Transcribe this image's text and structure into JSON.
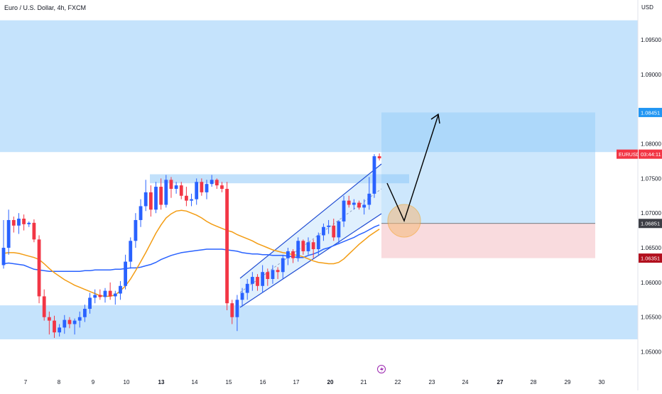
{
  "chart_data": {
    "type": "candlestick",
    "title": "Euro / U.S. Dollar, 4h, FXCM",
    "currency": "USD",
    "ylim": [
      1.0475,
      1.0995
    ],
    "y_ticks": [
      "1.09500",
      "1.09000",
      "1.08000",
      "1.07500",
      "1.07000",
      "1.06500",
      "1.06000",
      "1.05500",
      "1.05000"
    ],
    "y_tick_values": [
      1.095,
      1.09,
      1.08,
      1.075,
      1.07,
      1.065,
      1.06,
      1.055,
      1.05
    ],
    "x_ticks": [
      "7",
      "8",
      "9",
      "10",
      "13",
      "14",
      "15",
      "16",
      "17",
      "20",
      "21",
      "22",
      "23",
      "24",
      "27",
      "28",
      "29",
      "30"
    ],
    "x_tick_bold": [
      "13",
      "20",
      "27"
    ],
    "price_labels": [
      {
        "text": "1.08451",
        "value": 1.08451,
        "color": "#2196f3",
        "text_color": "#ffffff"
      },
      {
        "symbol": "EURUSD",
        "text": "03:44:11",
        "value": 1.0785,
        "color": "#f23645",
        "text_color": "#ffffff"
      },
      {
        "text": "1.06851",
        "value": 1.06851,
        "color": "#3d3f46",
        "text_color": "#ffffff"
      },
      {
        "text": "1.06351",
        "value": 1.06351,
        "color": "#b2101e",
        "text_color": "#ffffff"
      }
    ],
    "zones": [
      {
        "name": "upper-supply-zone",
        "y_from": 1.0788,
        "y_to": 1.0978
      },
      {
        "name": "lower-demand-zone",
        "y_from": 1.0518,
        "y_to": 1.0567
      },
      {
        "name": "resistance-line-zone",
        "y_from": 1.0743,
        "y_to": 1.0756
      }
    ],
    "position": {
      "entry": 1.06851,
      "target": 1.08451,
      "stop": 1.06351
    },
    "candles": [
      [
        1.0625,
        1.069,
        1.062,
        1.065
      ],
      [
        1.065,
        1.0705,
        1.064,
        1.069
      ],
      [
        1.069,
        1.0695,
        1.0672,
        1.0682
      ],
      [
        1.0682,
        1.07,
        1.067,
        1.0692
      ],
      [
        1.0692,
        1.0698,
        1.0675,
        1.0684
      ],
      [
        1.0684,
        1.0688,
        1.068,
        1.0686
      ],
      [
        1.0686,
        1.0691,
        1.0658,
        1.0662
      ],
      [
        1.0662,
        1.0668,
        1.057,
        1.058
      ],
      [
        1.058,
        1.059,
        1.0545,
        1.055
      ],
      [
        1.055,
        1.0558,
        1.0525,
        1.0545
      ],
      [
        1.0545,
        1.0552,
        1.052,
        1.0528
      ],
      [
        1.0528,
        1.054,
        1.0522,
        1.0535
      ],
      [
        1.0535,
        1.0553,
        1.0526,
        1.0546
      ],
      [
        1.0546,
        1.055,
        1.0534,
        1.054
      ],
      [
        1.054,
        1.0548,
        1.0525,
        1.0545
      ],
      [
        1.0545,
        1.0558,
        1.0535,
        1.055
      ],
      [
        1.055,
        1.0568,
        1.0543,
        1.0562
      ],
      [
        1.0562,
        1.0585,
        1.0555,
        1.0578
      ],
      [
        1.0578,
        1.059,
        1.057,
        1.0582
      ],
      [
        1.0582,
        1.059,
        1.0575,
        1.0579
      ],
      [
        1.0579,
        1.0592,
        1.0571,
        1.0588
      ],
      [
        1.0588,
        1.06,
        1.0575,
        1.058
      ],
      [
        1.058,
        1.0588,
        1.0568,
        1.0584
      ],
      [
        1.0584,
        1.0602,
        1.0575,
        1.0595
      ],
      [
        1.0595,
        1.064,
        1.059,
        1.063
      ],
      [
        1.063,
        1.0665,
        1.062,
        1.066
      ],
      [
        1.066,
        1.07,
        1.065,
        1.069
      ],
      [
        1.069,
        1.072,
        1.068,
        1.071
      ],
      [
        1.071,
        1.0748,
        1.0703,
        1.073
      ],
      [
        1.073,
        1.074,
        1.0695,
        1.0705
      ],
      [
        1.0705,
        1.0745,
        1.07,
        1.0738
      ],
      [
        1.0738,
        1.075,
        1.0705,
        1.0712
      ],
      [
        1.0712,
        1.0755,
        1.0708,
        1.0748
      ],
      [
        1.0748,
        1.0752,
        1.0722,
        1.0735
      ],
      [
        1.0735,
        1.0745,
        1.0728,
        1.074
      ],
      [
        1.074,
        1.0745,
        1.072,
        1.0725
      ],
      [
        1.0725,
        1.0738,
        1.071,
        1.0718
      ],
      [
        1.0718,
        1.0728,
        1.071,
        1.072
      ],
      [
        1.072,
        1.075,
        1.0712,
        1.0745
      ],
      [
        1.0745,
        1.075,
        1.0725,
        1.073
      ],
      [
        1.073,
        1.0748,
        1.072,
        1.0742
      ],
      [
        1.0742,
        1.0755,
        1.0738,
        1.0748
      ],
      [
        1.0748,
        1.075,
        1.0735,
        1.074
      ],
      [
        1.074,
        1.0745,
        1.073,
        1.0735
      ],
      [
        1.0735,
        1.0745,
        1.056,
        1.057
      ],
      [
        1.057,
        1.0575,
        1.054,
        1.055
      ],
      [
        1.055,
        1.0582,
        1.053,
        1.0575
      ],
      [
        1.0575,
        1.0592,
        1.0565,
        1.0585
      ],
      [
        1.0585,
        1.0605,
        1.0575,
        1.0598
      ],
      [
        1.0598,
        1.0615,
        1.0588,
        1.0608
      ],
      [
        1.0608,
        1.0612,
        1.0588,
        1.0595
      ],
      [
        1.0595,
        1.0625,
        1.0585,
        1.0615
      ],
      [
        1.0615,
        1.062,
        1.0595,
        1.0605
      ],
      [
        1.0605,
        1.0625,
        1.0598,
        1.0618
      ],
      [
        1.0618,
        1.0622,
        1.0605,
        1.0615
      ],
      [
        1.0615,
        1.064,
        1.0605,
        1.0635
      ],
      [
        1.0635,
        1.065,
        1.0625,
        1.0645
      ],
      [
        1.0645,
        1.0648,
        1.0628,
        1.0635
      ],
      [
        1.0635,
        1.0665,
        1.063,
        1.066
      ],
      [
        1.066,
        1.0662,
        1.064,
        1.0645
      ],
      [
        1.0645,
        1.0665,
        1.064,
        1.0658
      ],
      [
        1.0658,
        1.0662,
        1.0635,
        1.0648
      ],
      [
        1.0648,
        1.0672,
        1.064,
        1.0668
      ],
      [
        1.0668,
        1.0685,
        1.066,
        1.068
      ],
      [
        1.068,
        1.069,
        1.067,
        1.0682
      ],
      [
        1.0682,
        1.0692,
        1.066,
        1.0665
      ],
      [
        1.0665,
        1.069,
        1.0655,
        1.0688
      ],
      [
        1.0688,
        1.0725,
        1.068,
        1.0718
      ],
      [
        1.0718,
        1.0725,
        1.0708,
        1.0712
      ],
      [
        1.0712,
        1.072,
        1.0705,
        1.0715
      ],
      [
        1.0715,
        1.0718,
        1.0705,
        1.0708
      ],
      [
        1.0708,
        1.072,
        1.0698,
        1.0712
      ],
      [
        1.0712,
        1.0752,
        1.0705,
        1.0728
      ],
      [
        1.0728,
        1.0785,
        1.0722,
        1.0782
      ],
      [
        1.0782,
        1.0786,
        1.0776,
        1.0779
      ]
    ],
    "ma_slow": [
      1.0627,
      1.0628,
      1.0627,
      1.0626,
      1.0625,
      1.0622,
      1.0619,
      1.0618,
      1.0617,
      1.0616,
      1.0616,
      1.0616,
      1.0616,
      1.0616,
      1.0616,
      1.0616,
      1.0617,
      1.0617,
      1.0618,
      1.0618,
      1.0618,
      1.0618,
      1.0619,
      1.0619,
      1.062,
      1.0621,
      1.0621,
      1.0622,
      1.0624,
      1.0626,
      1.0629,
      1.0633,
      1.0636,
      1.0639,
      1.0641,
      1.0643,
      1.0644,
      1.0645,
      1.0646,
      1.0647,
      1.0648,
      1.0648,
      1.0648,
      1.0648,
      1.0647,
      1.0646,
      1.0645,
      1.0643,
      1.0642,
      1.0641,
      1.0641,
      1.064,
      1.064,
      1.0639,
      1.0639,
      1.0639,
      1.0638,
      1.0637,
      1.0636,
      1.0636,
      1.0639,
      1.0641,
      1.0644,
      1.0648,
      1.065,
      1.0653,
      1.0656,
      1.0659,
      1.0662,
      1.0665,
      1.0669,
      1.0672,
      1.0676,
      1.068,
      1.0683
    ],
    "ma_fast": [
      1.0642,
      1.0643,
      1.0643,
      1.0642,
      1.064,
      1.0638,
      1.0636,
      1.0633,
      1.0627,
      1.062,
      1.0614,
      1.0609,
      1.0604,
      1.06,
      1.0596,
      1.0593,
      1.059,
      1.0587,
      1.0584,
      1.0581,
      1.058,
      1.058,
      1.0582,
      1.0588,
      1.0595,
      1.0605,
      1.0617,
      1.063,
      1.0643,
      1.0657,
      1.0671,
      1.0683,
      1.0693,
      1.0699,
      1.0703,
      1.0704,
      1.0703,
      1.07,
      1.0697,
      1.0693,
      1.0688,
      1.0684,
      1.0681,
      1.0678,
      1.0675,
      1.0673,
      1.0669,
      1.0666,
      1.0663,
      1.066,
      1.0656,
      1.0653,
      1.065,
      1.0647,
      1.0645,
      1.0643,
      1.0642,
      1.064,
      1.0639,
      1.0637,
      1.0634,
      1.0631,
      1.0629,
      1.0628,
      1.0627,
      1.0627,
      1.0629,
      1.0634,
      1.0641,
      1.0648,
      1.0655,
      1.0661,
      1.0667,
      1.0672,
      1.0677
    ],
    "colors": {
      "bull": "#2962ff",
      "bear": "#f23645",
      "ma_slow": "#2962ff",
      "ma_fast": "#f39c12",
      "zone": "#bbdefb",
      "target_zone": "#bbdefb",
      "stop_zone": "#f8d7da",
      "channel_line": "#1e4bd2",
      "axis_text": "#131722"
    }
  }
}
